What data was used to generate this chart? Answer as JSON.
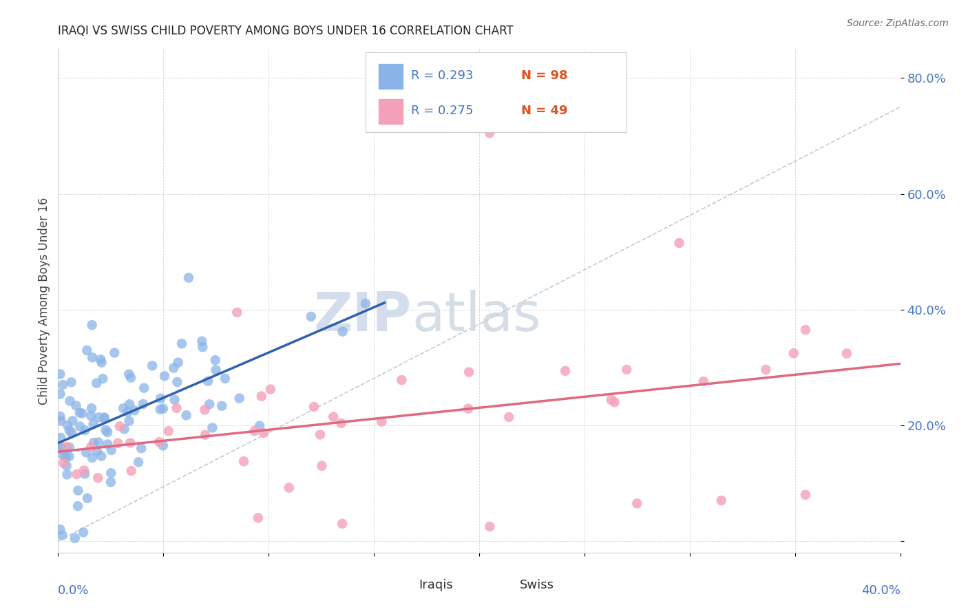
{
  "title": "IRAQI VS SWISS CHILD POVERTY AMONG BOYS UNDER 16 CORRELATION CHART",
  "source": "Source: ZipAtlas.com",
  "ylabel_text": "Child Poverty Among Boys Under 16",
  "xlim": [
    0.0,
    0.4
  ],
  "ylim": [
    -0.02,
    0.85
  ],
  "y_ticks": [
    0.0,
    0.2,
    0.4,
    0.6,
    0.8
  ],
  "y_tick_labels": [
    "",
    "20.0%",
    "40.0%",
    "60.0%",
    "80.0%"
  ],
  "x_tick_labels_show": [
    "0.0%",
    "40.0%"
  ],
  "watermark_zip": "ZIP",
  "watermark_atlas": "atlas",
  "legend_r1": "R = 0.293",
  "legend_n1": "N = 98",
  "legend_r2": "R = 0.275",
  "legend_n2": "N = 49",
  "iraqis_color": "#8ab4e8",
  "swiss_color": "#f4a0b8",
  "iraqis_line_color": "#3060b0",
  "swiss_line_color": "#e06880",
  "diag_line_color": "#b0c0d0",
  "background_color": "#ffffff",
  "legend_text_color": "#4472c4",
  "legend_n_color": "#e05020",
  "title_color": "#222222",
  "source_color": "#666666",
  "ylabel_color": "#444444",
  "ytick_color": "#4472c4",
  "xtick_color": "#4472c4",
  "grid_color": "#cccccc"
}
